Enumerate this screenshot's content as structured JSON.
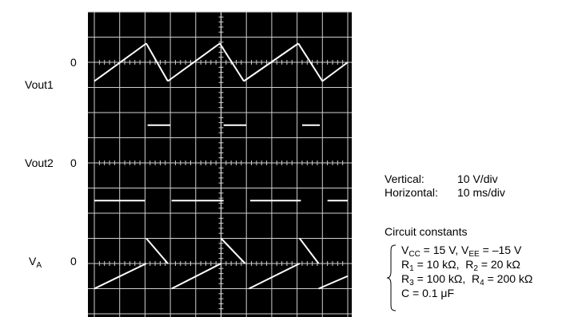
{
  "chart_data": {
    "type": "line",
    "title": "",
    "xlabel": "",
    "ylabel": "",
    "grid": "on",
    "grid_divisions": {
      "horizontal": 10,
      "vertical": 13
    },
    "background_color": "#000000",
    "trace_color": "#ffffff",
    "x_units": "ms",
    "y_units": "V",
    "xlim": [
      0,
      100
    ],
    "channel_labels": {
      "vout1": "Vout1",
      "vout2": "Vout2",
      "va_main": "V",
      "va_sub": "A"
    },
    "zero_label": "0",
    "series": [
      {
        "key": "vout1",
        "waveform": "triangle",
        "baseline_div_from_top": 2,
        "points": [
          [
            0,
            -7.5
          ],
          [
            20.5,
            7.5
          ],
          [
            29,
            -7.5
          ],
          [
            49.5,
            7.5
          ],
          [
            59,
            -7.5
          ],
          [
            80.5,
            7.5
          ],
          [
            90,
            -7.5
          ],
          [
            100,
            0
          ]
        ]
      },
      {
        "key": "vout2",
        "waveform": "square",
        "baseline_div_from_top": 6,
        "segments": [
          {
            "y": -15,
            "x": [
              0,
              20
            ]
          },
          {
            "y": 15,
            "x": [
              21,
              30
            ]
          },
          {
            "y": -15,
            "x": [
              30.5,
              51
            ]
          },
          {
            "y": 15,
            "x": [
              51,
              60
            ]
          },
          {
            "y": -15,
            "x": [
              61.5,
              81.5
            ]
          },
          {
            "y": 15,
            "x": [
              82,
              89
            ]
          },
          {
            "y": -15,
            "x": [
              92,
              100
            ]
          }
        ]
      },
      {
        "key": "va",
        "waveform": "sawtooth",
        "baseline_div_from_top": 10,
        "segments": [
          [
            [
              0,
              -10
            ],
            [
              20.5,
              0
            ]
          ],
          [
            [
              20.5,
              10
            ],
            [
              29,
              0
            ]
          ],
          [
            [
              30.5,
              -10
            ],
            [
              50,
              0
            ]
          ],
          [
            [
              50,
              10
            ],
            [
              59.5,
              0
            ]
          ],
          [
            [
              61,
              -10
            ],
            [
              81,
              0
            ]
          ],
          [
            [
              81,
              10
            ],
            [
              88.5,
              0
            ]
          ],
          [
            [
              88.5,
              -10
            ],
            [
              100,
              -5
            ]
          ]
        ]
      }
    ]
  },
  "settings": {
    "vertical_label": "Vertical:",
    "vertical_value": "10 V/div",
    "horizontal_label": "Horizontal:",
    "horizontal_value": "10 ms/div"
  },
  "circuit": {
    "title": "Circuit constants",
    "line1": {
      "vcc_main": "V",
      "vcc_sub": "CC",
      "vcc_val": " = 15 V, ",
      "vee_main": "V",
      "vee_sub": "EE",
      "vee_val": " = –15 V"
    },
    "line2": {
      "r1_main": "R",
      "r1_sub": "1",
      "r1_val": " = 10 kΩ,  ",
      "r2_main": "R",
      "r2_sub": "2",
      "r2_val": " = 20 kΩ"
    },
    "line3": {
      "r3_main": "R",
      "r3_sub": "3",
      "r3_val": " = 100 kΩ,  ",
      "r4_main": "R",
      "r4_sub": "4",
      "r4_val": " = 200 kΩ"
    },
    "line4": "C = 0.1 μF"
  }
}
